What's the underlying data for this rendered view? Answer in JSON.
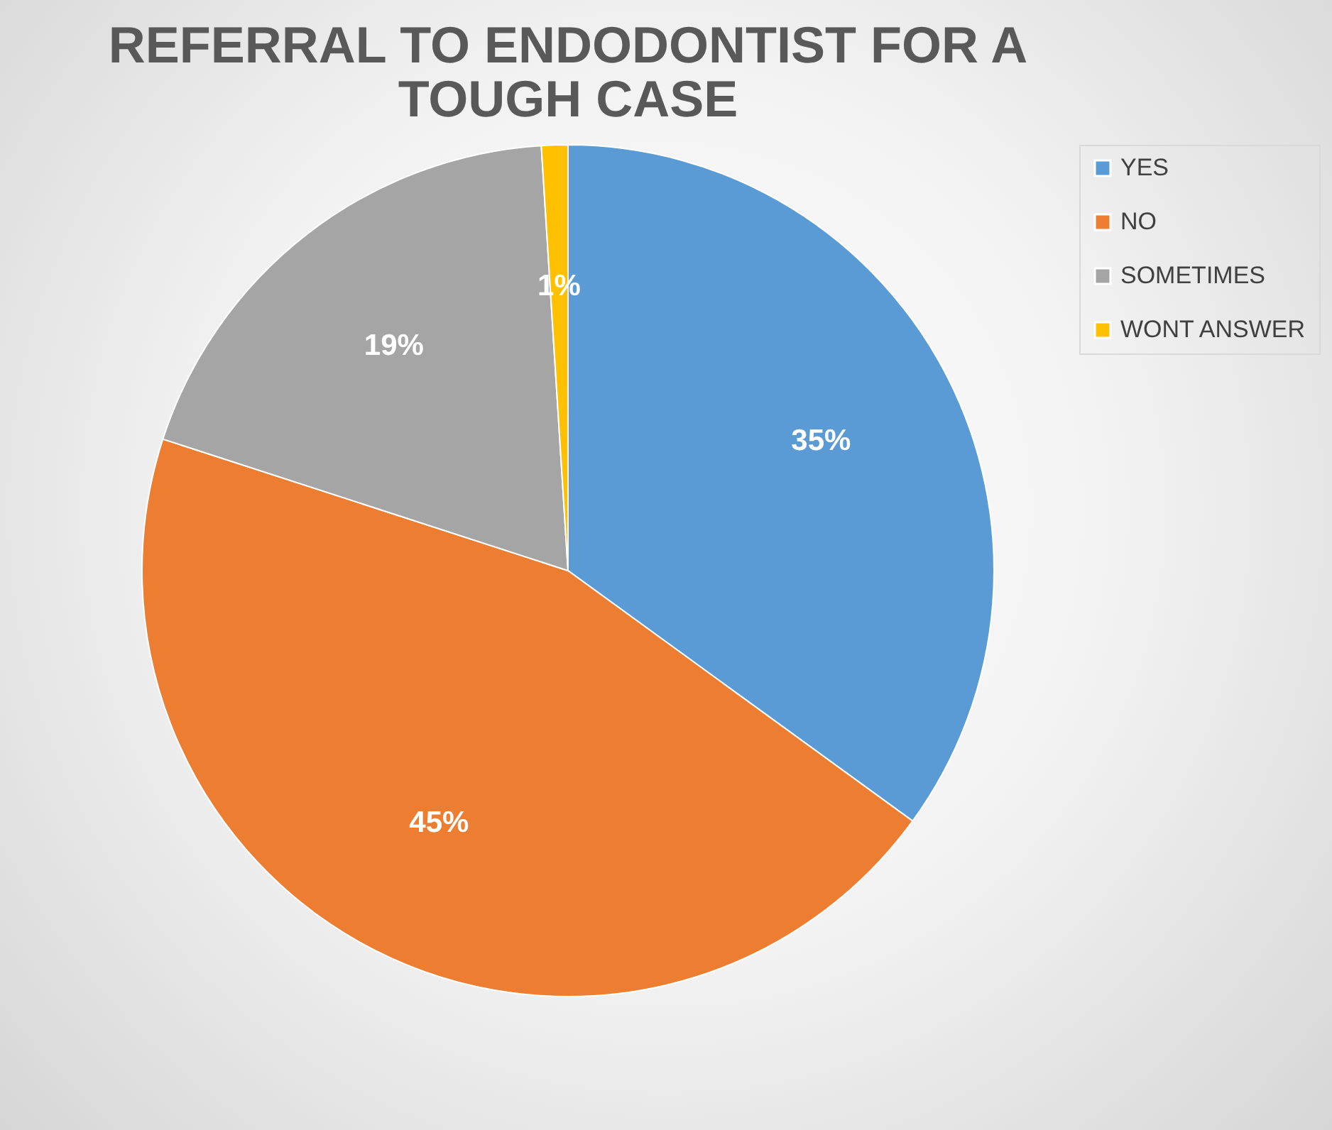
{
  "chart_data": {
    "type": "pie",
    "title": "REFERRAL TO ENDODONTIST FOR A TOUGH CASE",
    "categories": [
      "YES",
      "NO",
      "SOMETIMES",
      "WONT ANSWER"
    ],
    "values": [
      35,
      45,
      19,
      1
    ],
    "colors": [
      "#5b9bd5",
      "#ed7d31",
      "#a5a5a5",
      "#ffc000"
    ],
    "value_labels": [
      "35%",
      "45%",
      "19%",
      "1%"
    ],
    "legend": "right"
  }
}
